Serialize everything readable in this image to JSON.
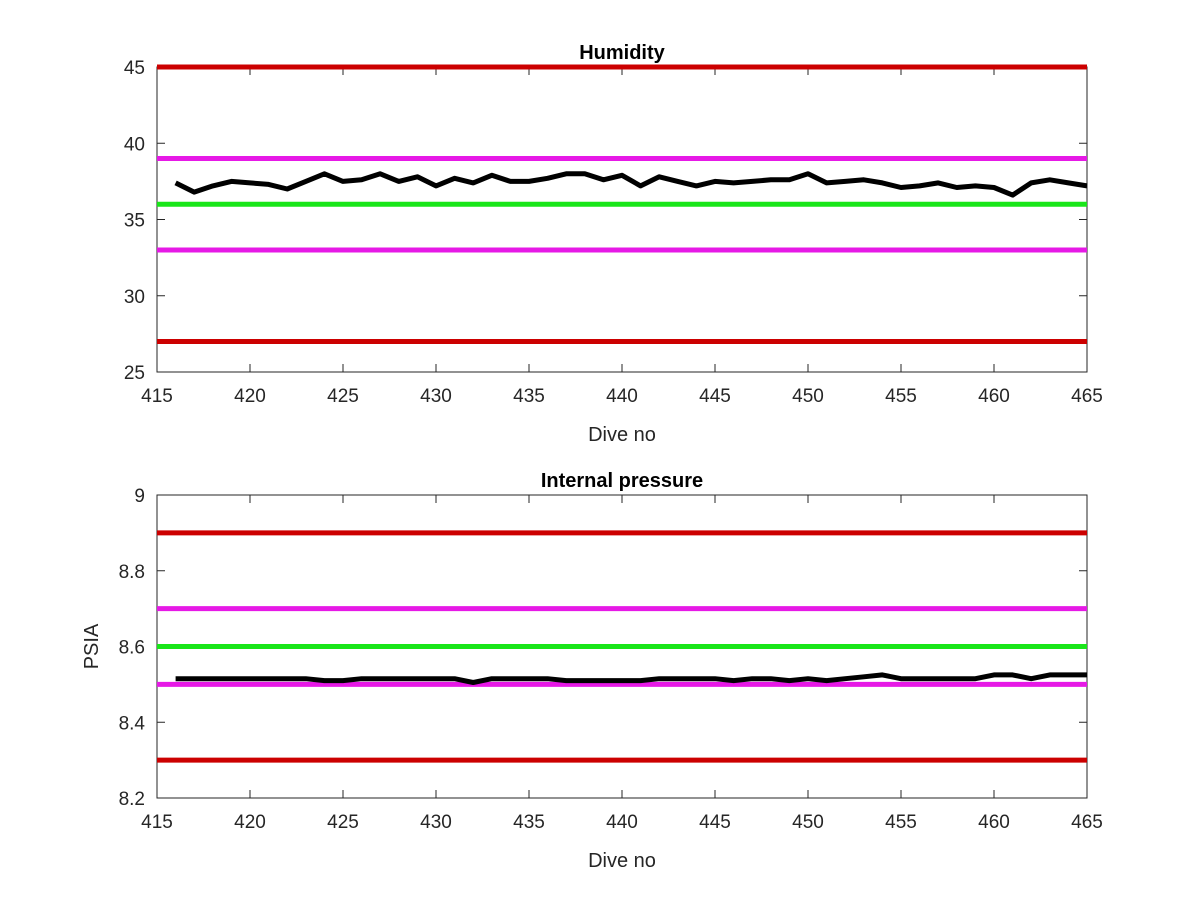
{
  "chart_data": [
    {
      "type": "line",
      "title": "Humidity",
      "xlabel": "Dive no",
      "ylabel": "",
      "xlim": [
        415,
        465
      ],
      "ylim": [
        25,
        45
      ],
      "xticks": [
        415,
        420,
        425,
        430,
        435,
        440,
        445,
        450,
        455,
        460,
        465
      ],
      "yticks": [
        25,
        30,
        35,
        40,
        45
      ],
      "grid": false,
      "reference_lines": [
        {
          "y": 45,
          "color": "#cc0000"
        },
        {
          "y": 39,
          "color": "#e619e6"
        },
        {
          "y": 36,
          "color": "#19e619"
        },
        {
          "y": 33,
          "color": "#e619e6"
        },
        {
          "y": 27,
          "color": "#cc0000"
        }
      ],
      "series": [
        {
          "color": "#000000",
          "x": [
            416,
            417,
            418,
            419,
            420,
            421,
            422,
            423,
            424,
            425,
            426,
            427,
            428,
            429,
            430,
            431,
            432,
            433,
            434,
            435,
            436,
            437,
            438,
            439,
            440,
            441,
            442,
            443,
            444,
            445,
            446,
            447,
            448,
            449,
            450,
            451,
            452,
            453,
            454,
            455,
            456,
            457,
            458,
            459,
            460,
            461,
            462,
            463,
            464,
            465
          ],
          "values": [
            37.4,
            36.8,
            37.2,
            37.5,
            37.4,
            37.3,
            37.0,
            37.5,
            38.0,
            37.5,
            37.6,
            38.0,
            37.5,
            37.8,
            37.2,
            37.7,
            37.4,
            37.9,
            37.5,
            37.5,
            37.7,
            38.0,
            38.0,
            37.6,
            37.9,
            37.2,
            37.8,
            37.5,
            37.2,
            37.5,
            37.4,
            37.5,
            37.6,
            37.6,
            38.0,
            37.4,
            37.5,
            37.6,
            37.4,
            37.1,
            37.2,
            37.4,
            37.1,
            37.2,
            37.1,
            36.6,
            37.4,
            37.6,
            37.4,
            37.2
          ]
        }
      ]
    },
    {
      "type": "line",
      "title": "Internal pressure",
      "xlabel": "Dive no",
      "ylabel": "PSIA",
      "xlim": [
        415,
        465
      ],
      "ylim": [
        8.2,
        9
      ],
      "xticks": [
        415,
        420,
        425,
        430,
        435,
        440,
        445,
        450,
        455,
        460,
        465
      ],
      "yticks": [
        8.2,
        8.4,
        8.6,
        8.8,
        9
      ],
      "grid": false,
      "reference_lines": [
        {
          "y": 8.9,
          "color": "#cc0000"
        },
        {
          "y": 8.7,
          "color": "#e619e6"
        },
        {
          "y": 8.6,
          "color": "#19e619"
        },
        {
          "y": 8.5,
          "color": "#e619e6"
        },
        {
          "y": 8.3,
          "color": "#cc0000"
        }
      ],
      "series": [
        {
          "color": "#000000",
          "x": [
            416,
            417,
            418,
            419,
            420,
            421,
            422,
            423,
            424,
            425,
            426,
            427,
            428,
            429,
            430,
            431,
            432,
            433,
            434,
            435,
            436,
            437,
            438,
            439,
            440,
            441,
            442,
            443,
            444,
            445,
            446,
            447,
            448,
            449,
            450,
            451,
            452,
            453,
            454,
            455,
            456,
            457,
            458,
            459,
            460,
            461,
            462,
            463,
            464,
            465
          ],
          "values": [
            8.515,
            8.515,
            8.515,
            8.515,
            8.515,
            8.515,
            8.515,
            8.515,
            8.51,
            8.51,
            8.515,
            8.515,
            8.515,
            8.515,
            8.515,
            8.515,
            8.505,
            8.515,
            8.515,
            8.515,
            8.515,
            8.51,
            8.51,
            8.51,
            8.51,
            8.51,
            8.515,
            8.515,
            8.515,
            8.515,
            8.51,
            8.515,
            8.515,
            8.51,
            8.515,
            8.51,
            8.515,
            8.52,
            8.525,
            8.515,
            8.515,
            8.515,
            8.515,
            8.515,
            8.525,
            8.525,
            8.515,
            8.525,
            8.525,
            8.525
          ]
        }
      ]
    }
  ]
}
